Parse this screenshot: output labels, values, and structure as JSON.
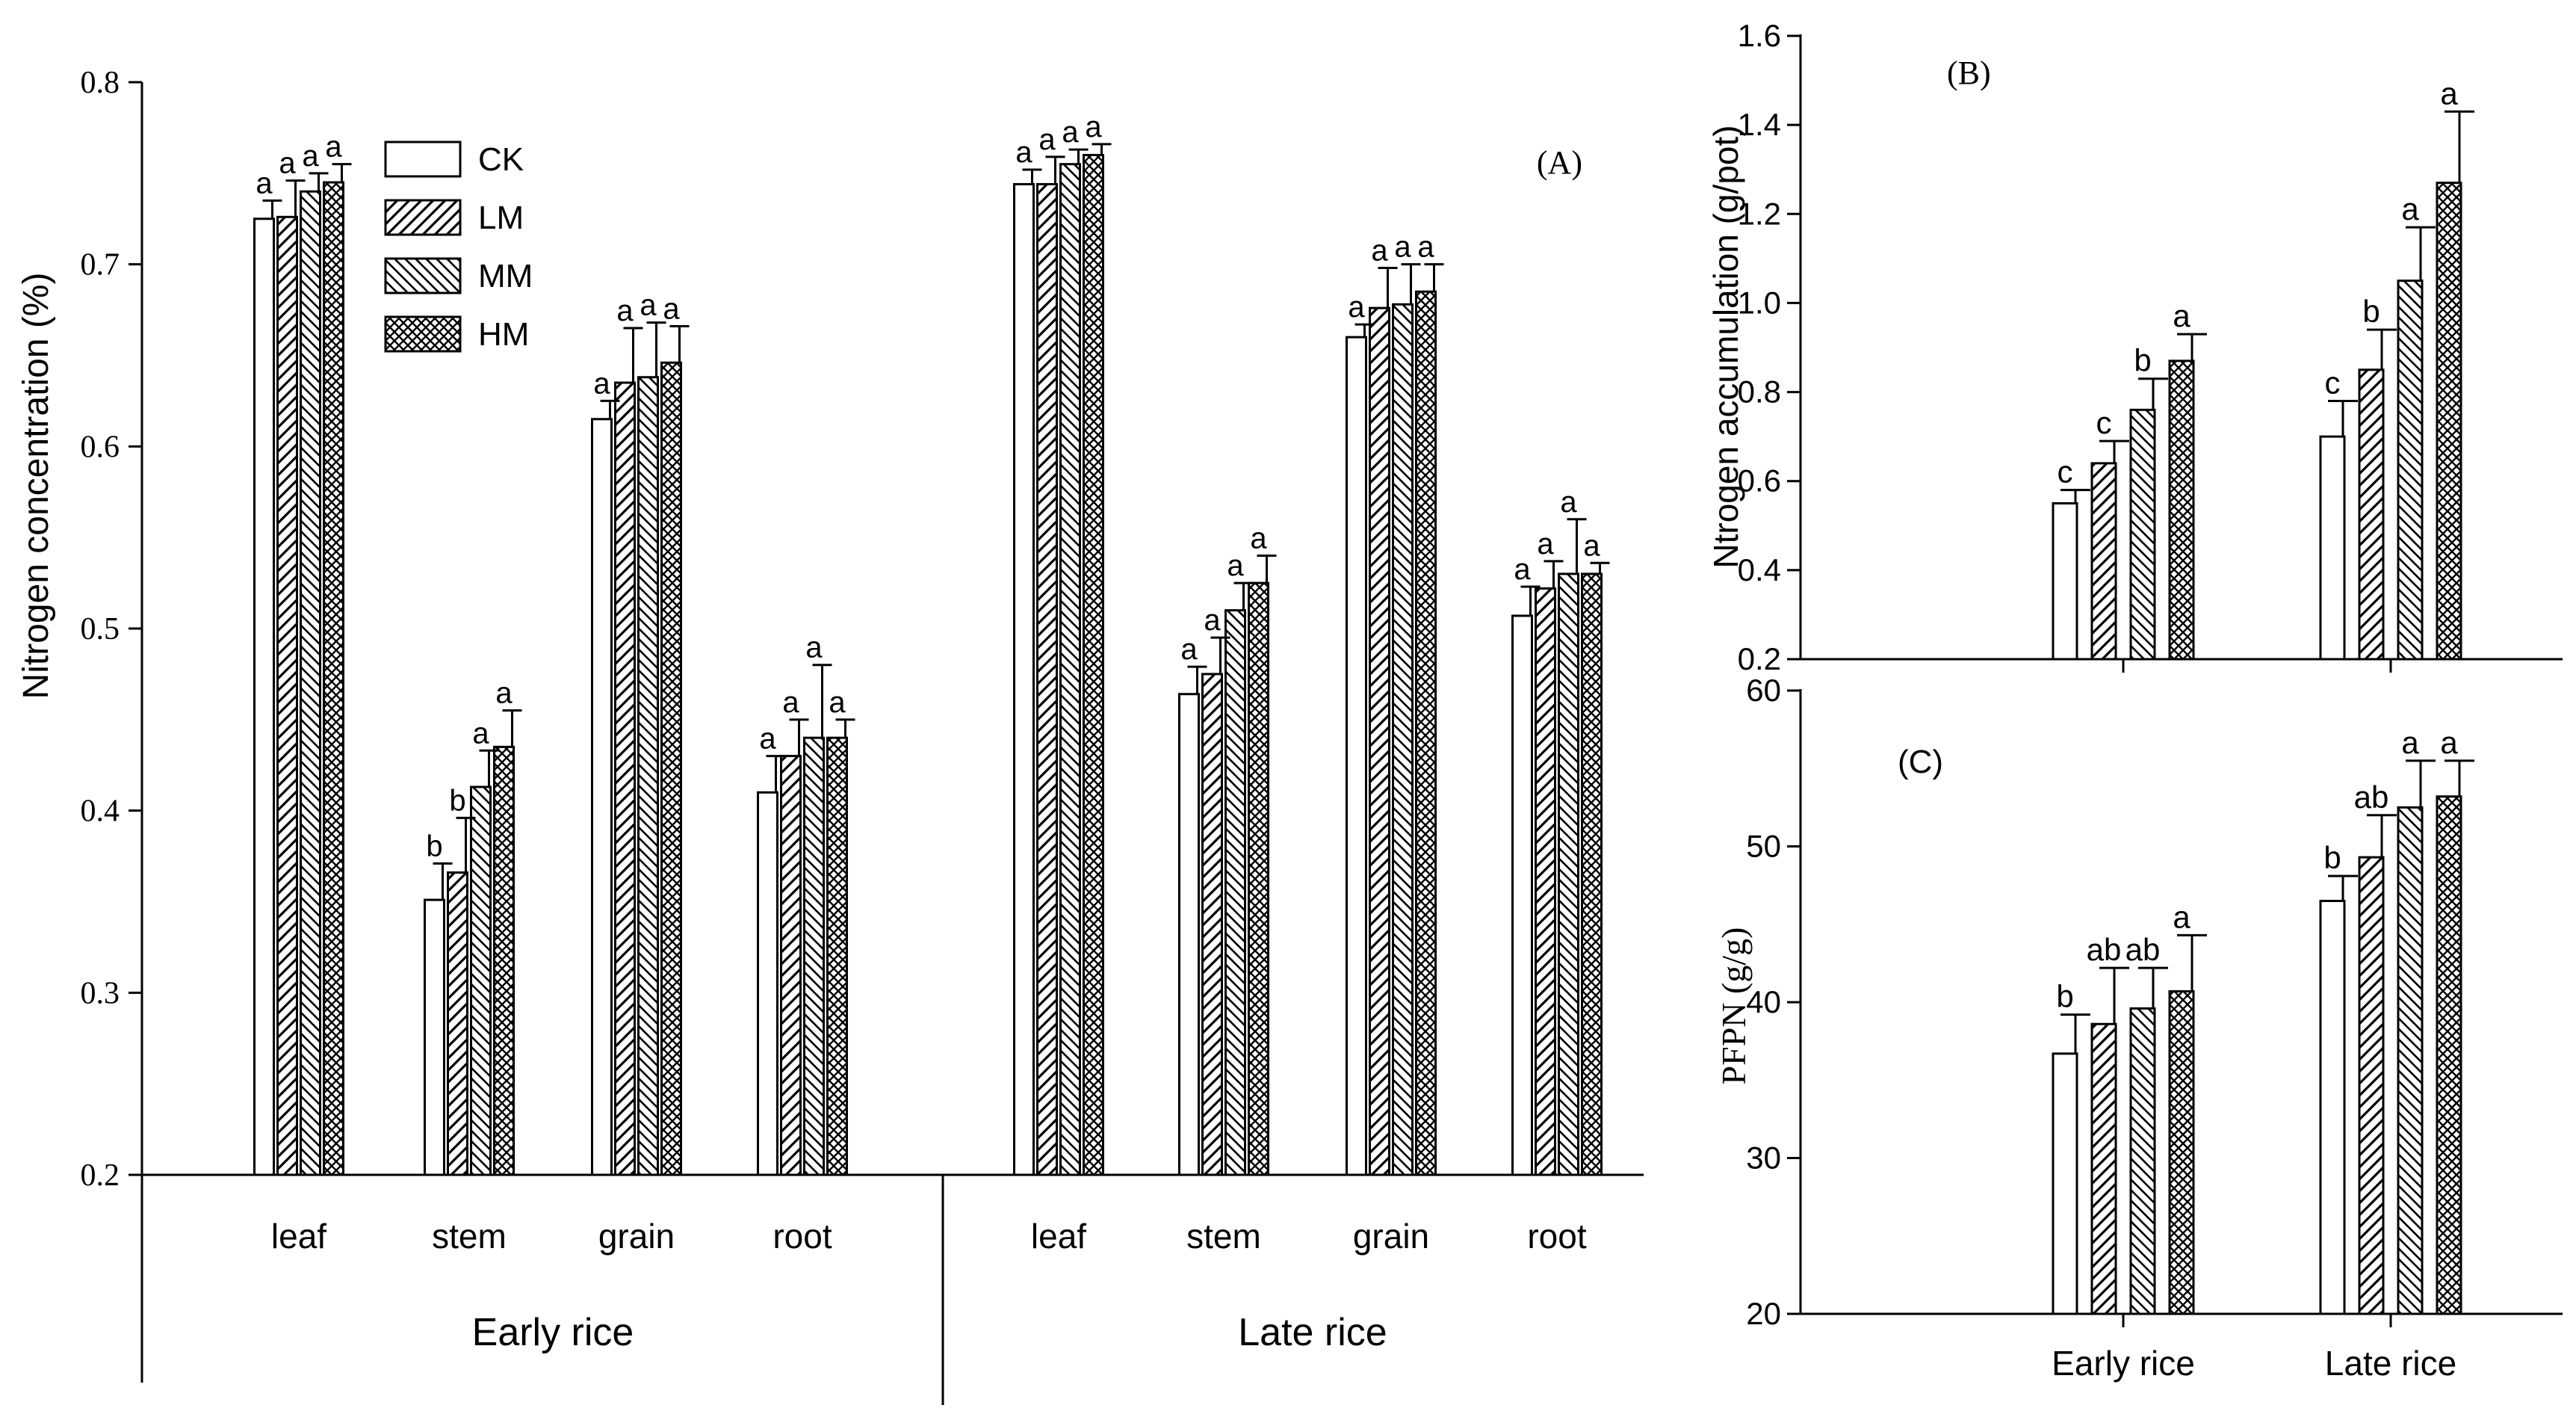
{
  "panels": {
    "A": {
      "label": "(A)",
      "ylabel": "Nitrogen  concentration  (%)",
      "ylim": [
        0.2,
        0.8
      ],
      "yticks": [
        "0.2",
        "0.3",
        "0.4",
        "0.5",
        "0.6",
        "0.7",
        "0.8"
      ],
      "legend": [
        "CK",
        "LM",
        "MM",
        "HM"
      ]
    },
    "B": {
      "label": "(B)",
      "ylabel": "Ntrogen accumulation (g/pot)",
      "ylim": [
        0.2,
        1.6
      ],
      "yticks": [
        "0.2",
        "0.4",
        "0.6",
        "0.8",
        "1.0",
        "1.2",
        "1.4",
        "1.6"
      ]
    },
    "C": {
      "label": "(C)",
      "ylabel": "PFPN (g/g)",
      "ylim": [
        20,
        60
      ],
      "yticks": [
        "20",
        "30",
        "40",
        "50",
        "60"
      ],
      "xticks": [
        "Early rice",
        "Late rice"
      ]
    }
  },
  "chart_data": [
    {
      "type": "bar",
      "panel": "A",
      "title": "(A)",
      "ylabel": "Nitrogen  concentration  (%)",
      "ylim": [
        0.2,
        0.8
      ],
      "legend_position": "top-left",
      "groups": [
        "Early rice",
        "Late rice"
      ],
      "categories": [
        "leaf",
        "stem",
        "grain",
        "root"
      ],
      "series_names": [
        "CK",
        "LM",
        "MM",
        "HM"
      ],
      "data": {
        "Early rice": {
          "leaf": {
            "values": [
              0.725,
              0.726,
              0.74,
              0.745
            ],
            "errors": [
              0.01,
              0.02,
              0.01,
              0.01
            ],
            "letters": [
              "a",
              "a",
              "a",
              "a"
            ]
          },
          "stem": {
            "values": [
              0.351,
              0.366,
              0.413,
              0.435
            ],
            "errors": [
              0.02,
              0.03,
              0.02,
              0.02
            ],
            "letters": [
              "b",
              "b",
              "a",
              "a"
            ]
          },
          "grain": {
            "values": [
              0.615,
              0.635,
              0.638,
              0.646
            ],
            "errors": [
              0.01,
              0.03,
              0.03,
              0.02
            ],
            "letters": [
              "a",
              "a",
              "a",
              "a"
            ]
          },
          "root": {
            "values": [
              0.41,
              0.43,
              0.44,
              0.44
            ],
            "errors": [
              0.02,
              0.02,
              0.04,
              0.01
            ],
            "letters": [
              "a",
              "a",
              "a",
              "a"
            ]
          }
        },
        "Late rice": {
          "leaf": {
            "values": [
              0.744,
              0.744,
              0.755,
              0.76
            ],
            "errors": [
              0.008,
              0.015,
              0.008,
              0.006
            ],
            "letters": [
              "a",
              "a",
              "a",
              "a"
            ]
          },
          "stem": {
            "values": [
              0.464,
              0.475,
              0.51,
              0.525
            ],
            "errors": [
              0.015,
              0.02,
              0.015,
              0.015
            ],
            "letters": [
              "a",
              "a",
              "a",
              "a"
            ]
          },
          "grain": {
            "values": [
              0.66,
              0.676,
              0.678,
              0.685
            ],
            "errors": [
              0.007,
              0.022,
              0.022,
              0.015
            ],
            "letters": [
              "a",
              "a",
              "a",
              "a"
            ]
          },
          "root": {
            "values": [
              0.507,
              0.522,
              0.53,
              0.53
            ],
            "errors": [
              0.016,
              0.015,
              0.03,
              0.006
            ],
            "letters": [
              "a",
              "a",
              "a",
              "a"
            ]
          }
        }
      }
    },
    {
      "type": "bar",
      "panel": "B",
      "title": "(B)",
      "ylabel": "Ntrogen accumulation (g/pot)",
      "ylim": [
        0.2,
        1.6
      ],
      "categories": [
        "Early rice",
        "Late rice"
      ],
      "series": [
        {
          "name": "CK",
          "values": [
            0.55,
            0.7
          ],
          "errors": [
            0.03,
            0.08
          ],
          "letters": [
            "c",
            "c"
          ]
        },
        {
          "name": "LM",
          "values": [
            0.64,
            0.85
          ],
          "errors": [
            0.05,
            0.09
          ],
          "letters": [
            "c",
            "b"
          ]
        },
        {
          "name": "MM",
          "values": [
            0.76,
            1.05
          ],
          "errors": [
            0.07,
            0.12
          ],
          "letters": [
            "b",
            "a"
          ]
        },
        {
          "name": "HM",
          "values": [
            0.87,
            1.27
          ],
          "errors": [
            0.06,
            0.16
          ],
          "letters": [
            "a",
            "a"
          ]
        }
      ]
    },
    {
      "type": "bar",
      "panel": "C",
      "title": "(C)",
      "ylabel": "PFPN (g/g)",
      "ylim": [
        20,
        60
      ],
      "categories": [
        "Early rice",
        "Late rice"
      ],
      "series": [
        {
          "name": "CK",
          "values": [
            36.7,
            46.5
          ],
          "errors": [
            2.5,
            1.6
          ],
          "letters": [
            "b",
            "b"
          ]
        },
        {
          "name": "LM",
          "values": [
            38.6,
            49.3
          ],
          "errors": [
            3.6,
            2.7
          ],
          "letters": [
            "ab",
            "ab"
          ]
        },
        {
          "name": "MM",
          "values": [
            39.6,
            52.5
          ],
          "errors": [
            2.6,
            3.0
          ],
          "letters": [
            "ab",
            "a"
          ]
        },
        {
          "name": "HM",
          "values": [
            40.7,
            53.2
          ],
          "errors": [
            3.6,
            2.3
          ],
          "letters": [
            "a",
            "a"
          ]
        }
      ]
    }
  ]
}
